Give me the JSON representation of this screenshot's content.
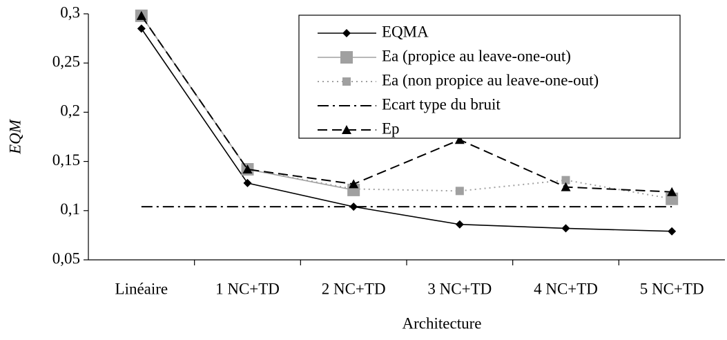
{
  "chart_data": {
    "type": "line",
    "x_label": "Architecture",
    "y_label": "EQM",
    "categories": [
      "Linéaire",
      "1 NC+TD",
      "2 NC+TD",
      "3 NC+TD",
      "4 NC+TD",
      "5 NC+TD"
    ],
    "series": [
      {
        "name": "EQMA",
        "color": "#000000",
        "marker": "diamond",
        "dash": "solid",
        "values": [
          0.285,
          0.128,
          0.104,
          0.086,
          0.082,
          0.079
        ]
      },
      {
        "name": "Ea (propice au leave-one-out)",
        "color": "#a0a0a0",
        "marker": "square",
        "dash": "solid",
        "values": [
          0.298,
          0.142,
          0.121,
          null,
          null,
          0.112
        ]
      },
      {
        "name": "Ea (non propice au leave-one-out)",
        "color": "#a0a0a0",
        "marker": "small-square",
        "dash": "dotted",
        "values": [
          0.298,
          0.142,
          0.122,
          0.12,
          0.131,
          0.112
        ]
      },
      {
        "name": "Ecart type du bruit",
        "color": "#000000",
        "marker": "none",
        "dash": "dashdot",
        "values": [
          0.104,
          0.104,
          0.104,
          0.104,
          0.104,
          0.104
        ]
      },
      {
        "name": "Ep",
        "color": "#000000",
        "marker": "triangle",
        "dash": "dashed",
        "values": [
          0.298,
          0.142,
          0.127,
          0.172,
          0.124,
          0.119
        ]
      }
    ],
    "ylim": [
      0.05,
      0.3
    ],
    "yticks": [
      {
        "value": 0.05,
        "label": "0,05"
      },
      {
        "value": 0.1,
        "label": "0,1"
      },
      {
        "value": 0.15,
        "label": "0,15"
      },
      {
        "value": 0.2,
        "label": "0,2"
      },
      {
        "value": 0.25,
        "label": "0,25"
      },
      {
        "value": 0.3,
        "label": "0,3"
      }
    ],
    "grid": false,
    "legend": "top-right"
  }
}
